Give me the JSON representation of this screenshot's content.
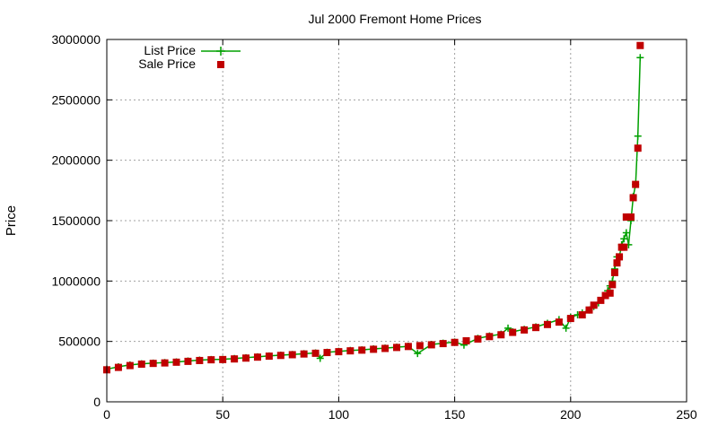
{
  "chart_data": {
    "type": "scatter",
    "title": "Jul 2000 Fremont Home Prices",
    "xlabel": "",
    "ylabel": "Price",
    "xlim": [
      0,
      250
    ],
    "ylim": [
      0,
      3000000
    ],
    "x_ticks": [
      0,
      50,
      100,
      150,
      200,
      250
    ],
    "y_ticks": [
      0,
      500000,
      1000000,
      1500000,
      2000000,
      2500000,
      3000000
    ],
    "grid": true,
    "legend_position": "top-left",
    "series": [
      {
        "name": "List Price",
        "style": "linespoints",
        "marker": "plus",
        "color": "#00a000",
        "x": [
          0,
          5,
          10,
          15,
          20,
          25,
          30,
          35,
          40,
          45,
          50,
          55,
          60,
          65,
          70,
          75,
          80,
          85,
          90,
          92,
          95,
          100,
          105,
          110,
          115,
          120,
          125,
          130,
          134,
          140,
          145,
          150,
          154,
          160,
          165,
          170,
          173,
          175,
          180,
          185,
          190,
          195,
          198,
          200,
          203,
          205,
          208,
          210,
          212,
          214,
          216,
          217,
          218,
          219,
          220,
          221,
          222,
          223,
          224,
          225,
          226,
          227,
          228,
          229,
          230
        ],
        "values": [
          270000,
          290000,
          305000,
          315000,
          320000,
          325000,
          330000,
          338000,
          345000,
          350000,
          352000,
          358000,
          365000,
          372000,
          380000,
          386000,
          392000,
          398000,
          405000,
          360000,
          410000,
          418000,
          425000,
          430000,
          438000,
          445000,
          452000,
          460000,
          400000,
          475000,
          485000,
          495000,
          470000,
          525000,
          545000,
          560000,
          610000,
          580000,
          600000,
          620000,
          650000,
          680000,
          610000,
          700000,
          720000,
          735000,
          760000,
          790000,
          820000,
          860000,
          920000,
          960000,
          1000000,
          1100000,
          1200000,
          1200000,
          1300000,
          1350000,
          1400000,
          1300000,
          1500000,
          1700000,
          1800000,
          2200000,
          2850000
        ]
      },
      {
        "name": "Sale Price",
        "style": "points",
        "marker": "square",
        "color": "#c00000",
        "x": [
          0,
          5,
          10,
          15,
          20,
          25,
          30,
          35,
          40,
          45,
          50,
          55,
          60,
          65,
          70,
          75,
          80,
          85,
          90,
          95,
          100,
          105,
          110,
          115,
          120,
          125,
          130,
          135,
          140,
          145,
          150,
          155,
          160,
          165,
          170,
          175,
          180,
          185,
          190,
          195,
          200,
          205,
          208,
          210,
          213,
          215,
          217,
          218,
          219,
          220,
          221,
          222,
          223,
          224,
          225,
          226,
          227,
          228,
          229,
          230
        ],
        "values": [
          265000,
          285000,
          300000,
          312000,
          318000,
          322000,
          328000,
          335000,
          342000,
          348000,
          350000,
          355000,
          362000,
          370000,
          378000,
          384000,
          390000,
          396000,
          402000,
          408000,
          415000,
          422000,
          428000,
          435000,
          442000,
          450000,
          458000,
          465000,
          472000,
          482000,
          492000,
          505000,
          520000,
          540000,
          555000,
          575000,
          595000,
          615000,
          640000,
          660000,
          690000,
          720000,
          760000,
          800000,
          840000,
          880000,
          900000,
          970000,
          1070000,
          1150000,
          1200000,
          1280000,
          1280000,
          1530000,
          1530000,
          1530000,
          1690000,
          1800000,
          2100000,
          2950000
        ]
      }
    ]
  },
  "legend": {
    "list_label": "List Price",
    "sale_label": "Sale Price"
  },
  "colors": {
    "list": "#00a000",
    "sale": "#c00000",
    "grid": "#a0a0a0"
  }
}
